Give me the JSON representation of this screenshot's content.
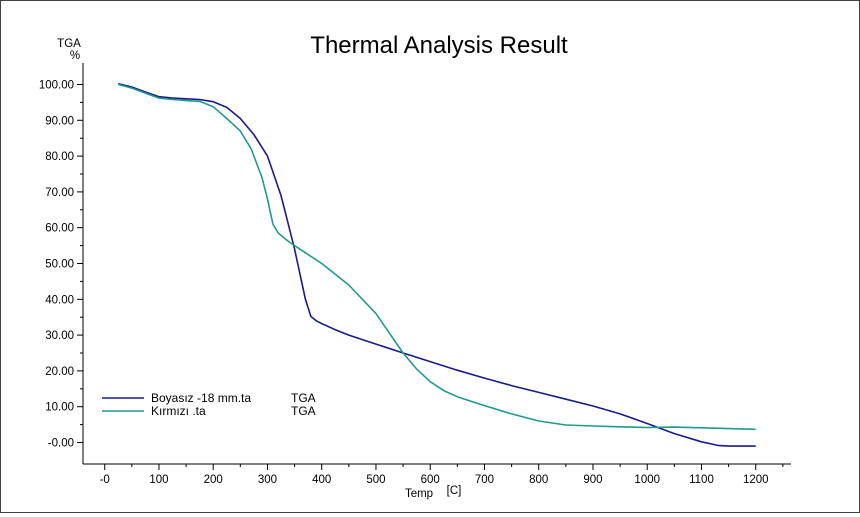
{
  "chart_data": {
    "type": "line",
    "title": "Thermal Analysis Result",
    "ylabel_top": "TGA",
    "ylabel_unit": "%",
    "xlabel_name": "Temp",
    "xlabel_unit": "[C]",
    "xlim": [
      -40,
      1265
    ],
    "ylim": [
      -6,
      106
    ],
    "x_ticks": [
      0,
      100,
      200,
      300,
      400,
      500,
      600,
      700,
      800,
      900,
      1000,
      1100,
      1200
    ],
    "x_tick_labels": [
      "-0",
      "100",
      "200",
      "300",
      "400",
      "500",
      "600",
      "700",
      "800",
      "900",
      "1000",
      "1100",
      "1200"
    ],
    "y_ticks": [
      0,
      10,
      20,
      30,
      40,
      50,
      60,
      70,
      80,
      90,
      100
    ],
    "y_tick_labels": [
      "-0.00",
      "10.00",
      "20.00",
      "30.00",
      "40.00",
      "50.00",
      "60.00",
      "70.00",
      "80.00",
      "90.00",
      "100.00"
    ],
    "grid": false,
    "legend_position": "bottom-left",
    "series": [
      {
        "name": "Boyasız -18 mm.ta",
        "suffix": "TGA",
        "color": "#1a1a8c",
        "x": [
          25,
          50,
          75,
          100,
          125,
          150,
          175,
          200,
          225,
          250,
          275,
          300,
          325,
          340,
          350,
          360,
          370,
          380,
          390,
          400,
          425,
          450,
          500,
          550,
          600,
          650,
          700,
          750,
          800,
          850,
          900,
          950,
          1000,
          1050,
          1100,
          1130,
          1150,
          1175,
          1200
        ],
        "y": [
          100.2,
          99.3,
          97.9,
          96.6,
          96.2,
          96.0,
          95.8,
          95.2,
          93.6,
          90.5,
          86.0,
          80.0,
          69.0,
          60.0,
          54.0,
          47.0,
          40.0,
          35.2,
          34.0,
          33.2,
          31.5,
          30.0,
          27.5,
          25.0,
          22.6,
          20.2,
          18.0,
          15.9,
          14.0,
          12.1,
          10.2,
          8.0,
          5.3,
          2.5,
          0.2,
          -0.8,
          -1.0,
          -1.0,
          -1.0
        ]
      },
      {
        "name": "Kırmızı .ta",
        "suffix": "TGA",
        "color": "#1e9a8f",
        "x": [
          25,
          50,
          75,
          100,
          125,
          150,
          175,
          200,
          225,
          250,
          270,
          290,
          300,
          310,
          320,
          340,
          360,
          400,
          450,
          500,
          525,
          550,
          575,
          600,
          625,
          650,
          675,
          700,
          750,
          800,
          850,
          900,
          950,
          1000,
          1050,
          1100,
          1150,
          1200
        ],
        "y": [
          100.0,
          99.0,
          97.6,
          96.2,
          95.8,
          95.5,
          95.3,
          93.8,
          90.5,
          87.0,
          82.0,
          74.0,
          68.0,
          61.0,
          58.5,
          56.0,
          54.0,
          50.0,
          44.0,
          36.0,
          30.5,
          25.0,
          20.5,
          17.0,
          14.5,
          12.8,
          11.5,
          10.3,
          8.0,
          6.0,
          4.9,
          4.6,
          4.4,
          4.2,
          4.3,
          4.1,
          3.9,
          3.7
        ]
      }
    ]
  }
}
